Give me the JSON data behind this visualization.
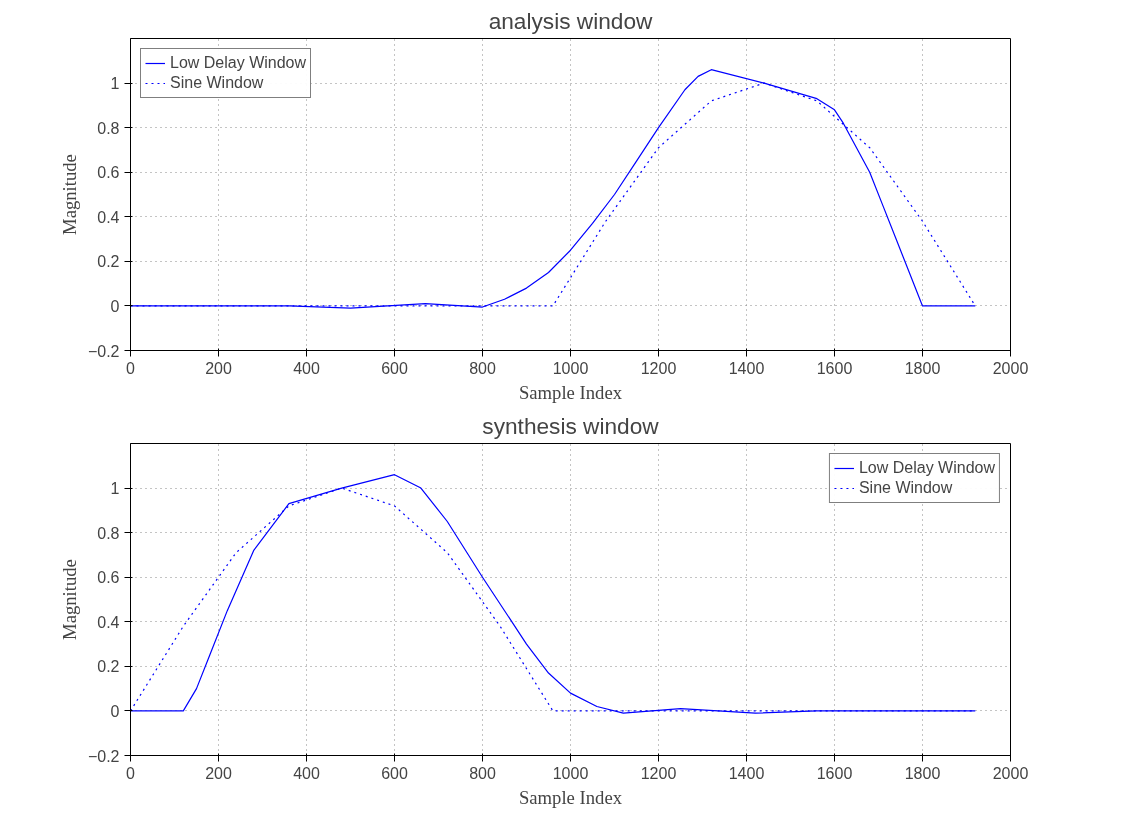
{
  "chart_data": [
    {
      "type": "line",
      "title": "analysis window",
      "xlabel": "Sample Index",
      "ylabel": "Magnitude",
      "xlim": [
        0,
        2000
      ],
      "ylim": [
        -0.2,
        1.2
      ],
      "xticks": [
        0,
        200,
        400,
        600,
        800,
        1000,
        1200,
        1400,
        1600,
        1800,
        2000
      ],
      "yticks": [
        -0.2,
        0,
        0.2,
        0.4,
        0.6,
        0.8,
        1
      ],
      "grid": true,
      "legend": "top left",
      "series": [
        {
          "name": "Low Delay Window",
          "color": "#0000ff",
          "line_style": "solid",
          "x": [
            0,
            360,
            500,
            670,
            800,
            850,
            900,
            950,
            1000,
            1050,
            1100,
            1150,
            1200,
            1260,
            1290,
            1320,
            1440,
            1560,
            1600,
            1620,
            1680,
            1710,
            1740,
            1770,
            1800,
            1920
          ],
          "values": [
            0,
            0,
            -0.01,
            0.01,
            -0.005,
            0.03,
            0.08,
            0.15,
            0.25,
            0.37,
            0.5,
            0.65,
            0.8,
            0.97,
            1.03,
            1.06,
            1.0,
            0.93,
            0.88,
            0.82,
            0.6,
            0.45,
            0.3,
            0.15,
            0,
            0
          ]
        },
        {
          "name": "Sine Window",
          "color": "#0000ff",
          "line_style": "dotted",
          "x": [
            0,
            960,
            1080,
            1200,
            1320,
            1440,
            1560,
            1680,
            1800,
            1920
          ],
          "values": [
            0,
            0,
            0.38,
            0.71,
            0.92,
            1.0,
            0.92,
            0.71,
            0.38,
            0
          ]
        }
      ]
    },
    {
      "type": "line",
      "title": "synthesis window",
      "xlabel": "Sample Index",
      "ylabel": "Magnitude",
      "xlim": [
        0,
        2000
      ],
      "ylim": [
        -0.2,
        1.2
      ],
      "xticks": [
        0,
        200,
        400,
        600,
        800,
        1000,
        1200,
        1400,
        1600,
        1800,
        2000
      ],
      "yticks": [
        -0.2,
        0,
        0.2,
        0.4,
        0.6,
        0.8,
        1
      ],
      "grid": true,
      "legend": "top right",
      "series": [
        {
          "name": "Low Delay Window",
          "color": "#0000ff",
          "line_style": "solid",
          "x": [
            0,
            120,
            150,
            180,
            220,
            280,
            360,
            480,
            600,
            660,
            720,
            800,
            900,
            950,
            1000,
            1060,
            1120,
            1250,
            1420,
            1560,
            1920
          ],
          "values": [
            0,
            0,
            0.1,
            0.25,
            0.45,
            0.72,
            0.93,
            1.0,
            1.06,
            1.0,
            0.85,
            0.6,
            0.3,
            0.17,
            0.08,
            0.02,
            -0.01,
            0.01,
            -0.01,
            0,
            0
          ]
        },
        {
          "name": "Sine Window",
          "color": "#0000ff",
          "line_style": "dotted",
          "x": [
            0,
            120,
            240,
            360,
            480,
            600,
            720,
            840,
            960,
            1920
          ],
          "values": [
            0,
            0.38,
            0.71,
            0.92,
            1.0,
            0.92,
            0.71,
            0.38,
            0,
            0
          ]
        }
      ]
    }
  ]
}
